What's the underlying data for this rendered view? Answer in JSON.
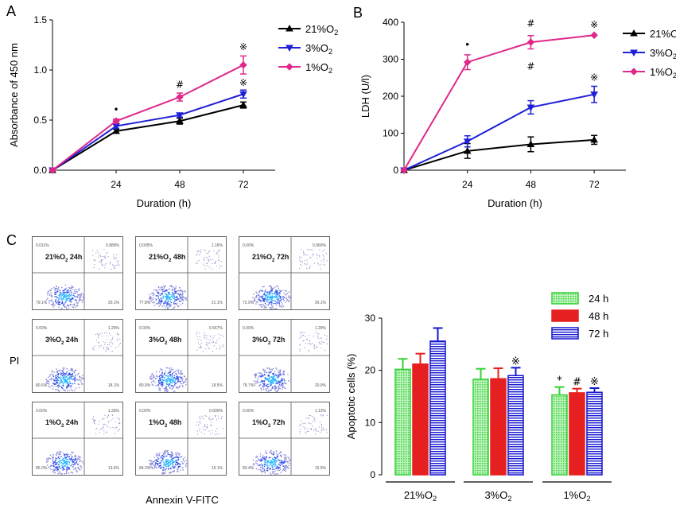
{
  "panels": {
    "a": "A",
    "b": "B",
    "c": "C"
  },
  "chart_data": [
    {
      "type": "line",
      "panel": "A",
      "xlabel": "Duration (h)",
      "ylabel": "Absorbance of 450 nm",
      "x": [
        0,
        24,
        48,
        72
      ],
      "xticks": [
        "24",
        "48",
        "72"
      ],
      "yticks": [
        "0.0",
        "0.5",
        "1.0",
        "1.5"
      ],
      "ylim": [
        0,
        1.5
      ],
      "series": [
        {
          "name": "21%O2",
          "label_main": "21%O",
          "label_sub": "2",
          "color": "#000000",
          "marker": "triangle-up",
          "values": [
            0,
            0.39,
            0.49,
            0.65
          ],
          "errors": [
            0,
            0.02,
            0.03,
            0.03
          ]
        },
        {
          "name": "3%O2",
          "label_main": "3%O",
          "label_sub": "2",
          "color": "#1f1fd6",
          "marker": "triangle-down",
          "values": [
            0,
            0.44,
            0.55,
            0.76
          ],
          "errors": [
            0,
            0.02,
            0.02,
            0.04
          ]
        },
        {
          "name": "1%O2",
          "label_main": "1%O",
          "label_sub": "2",
          "color": "#e0288a",
          "marker": "diamond",
          "values": [
            0,
            0.49,
            0.73,
            1.05
          ],
          "errors": [
            0,
            0.02,
            0.04,
            0.09
          ]
        }
      ],
      "annotations": [
        {
          "x": 24,
          "y": 0.57,
          "text": "•"
        },
        {
          "x": 48,
          "y": 0.82,
          "text": "#"
        },
        {
          "x": 72,
          "y": 1.2,
          "text": "※"
        },
        {
          "x": 72,
          "y": 0.84,
          "text": "※"
        }
      ],
      "legend": "top-right"
    },
    {
      "type": "line",
      "panel": "B",
      "xlabel": "Duration (h)",
      "ylabel": "LDH (U/l)",
      "x": [
        0,
        24,
        48,
        72
      ],
      "xticks": [
        "24",
        "48",
        "72"
      ],
      "yticks": [
        "0",
        "100",
        "200",
        "300",
        "400"
      ],
      "ylim": [
        0,
        400
      ],
      "series": [
        {
          "name": "21%O2",
          "label_main": "21%O",
          "label_sub": "2",
          "color": "#000000",
          "marker": "triangle-up",
          "values": [
            0,
            52,
            70,
            82
          ],
          "errors": [
            0,
            20,
            20,
            12
          ]
        },
        {
          "name": "3%O2",
          "label_main": "3%O",
          "label_sub": "2",
          "color": "#1f1fd6",
          "marker": "triangle-down",
          "values": [
            0,
            78,
            170,
            205
          ],
          "errors": [
            0,
            15,
            18,
            22
          ]
        },
        {
          "name": "1%O2",
          "label_main": "1%O",
          "label_sub": "2",
          "color": "#e0288a",
          "marker": "diamond",
          "values": [
            0,
            292,
            346,
            365
          ],
          "errors": [
            0,
            20,
            18,
            0
          ]
        }
      ],
      "annotations": [
        {
          "x": 24,
          "y": 330,
          "text": "•"
        },
        {
          "x": 48,
          "y": 272,
          "text": "#"
        },
        {
          "x": 48,
          "y": 388,
          "text": "#"
        },
        {
          "x": 72,
          "y": 242,
          "text": "※"
        },
        {
          "x": 72,
          "y": 385,
          "text": "※"
        }
      ],
      "legend": "top-right"
    },
    {
      "type": "bar",
      "panel": "C",
      "ylabel": "Apoptotic cells (%)",
      "yticks": [
        "0",
        "10",
        "20",
        "30"
      ],
      "ylim": [
        0,
        30
      ],
      "categories": [
        {
          "main": "21%O",
          "sub": "2"
        },
        {
          "main": "3%O",
          "sub": "2"
        },
        {
          "main": "1%O",
          "sub": "2"
        }
      ],
      "series": [
        {
          "name": "24 h",
          "color": "#35d135",
          "pattern": "dots",
          "values": [
            20.2,
            18.3,
            15.3
          ],
          "errors": [
            2.0,
            2.0,
            1.5
          ]
        },
        {
          "name": "48 h",
          "color": "#e62020",
          "pattern": "solid",
          "values": [
            21.2,
            18.4,
            15.7
          ],
          "errors": [
            2.0,
            2.0,
            0.8
          ]
        },
        {
          "name": "72 h",
          "color": "#1515d0",
          "pattern": "hlines",
          "values": [
            25.6,
            19.0,
            15.8
          ],
          "errors": [
            2.5,
            1.5,
            0.8
          ]
        }
      ],
      "annotations": [
        {
          "category": 2,
          "series": 0,
          "text": "*"
        },
        {
          "category": 2,
          "series": 1,
          "text": "#"
        },
        {
          "category": 2,
          "series": 2,
          "text": "※"
        },
        {
          "category": 1,
          "series": 2,
          "text": "※"
        }
      ],
      "legend": "top-right"
    }
  ],
  "flow": {
    "ylabel": "PI",
    "xlabel": "Annexin V-FITC",
    "cells": [
      {
        "main": "21%O",
        "sub": "2",
        "time": " 24h",
        "q1": "0.011%",
        "q2": "0.889%",
        "q3": "20.1%",
        "q4": "79.1%"
      },
      {
        "main": "21%O",
        "sub": "2",
        "time": " 48h",
        "q1": "0.005%",
        "q2": "1.16%",
        "q3": "21.1%",
        "q4": "77.8%"
      },
      {
        "main": "21%O",
        "sub": "2",
        "time": " 72h",
        "q1": "0.00%",
        "q2": "0.960%",
        "q3": "26.1%",
        "q4": "72.9%"
      },
      {
        "main": "3%O",
        "sub": "2",
        "time": " 24h",
        "q1": "0.00%",
        "q2": "1.29%",
        "q3": "18.1%",
        "q4": "80.6%"
      },
      {
        "main": "3%O",
        "sub": "2",
        "time": " 48h",
        "q1": "0.00%",
        "q2": "0.567%",
        "q3": "18.5%",
        "q4": "80.9%"
      },
      {
        "main": "3%O",
        "sub": "2",
        "time": " 72h",
        "q1": "0.00%",
        "q2": "1.29%",
        "q3": "20.0%",
        "q4": "78.7%"
      },
      {
        "main": "1%O",
        "sub": "2",
        "time": " 24h",
        "q1": "0.00%",
        "q2": "1.33%",
        "q3": "13.6%",
        "q4": "85.0%"
      },
      {
        "main": "1%O",
        "sub": "2",
        "time": " 48h",
        "q1": "0.00%",
        "q2": "0.600%",
        "q3": "15.1%",
        "q4": "84.3%"
      },
      {
        "main": "1%O",
        "sub": "2",
        "time": " 72h",
        "q1": "0.00%",
        "q2": "1.13%",
        "q3": "15.5%",
        "q4": "83.4%"
      }
    ]
  }
}
